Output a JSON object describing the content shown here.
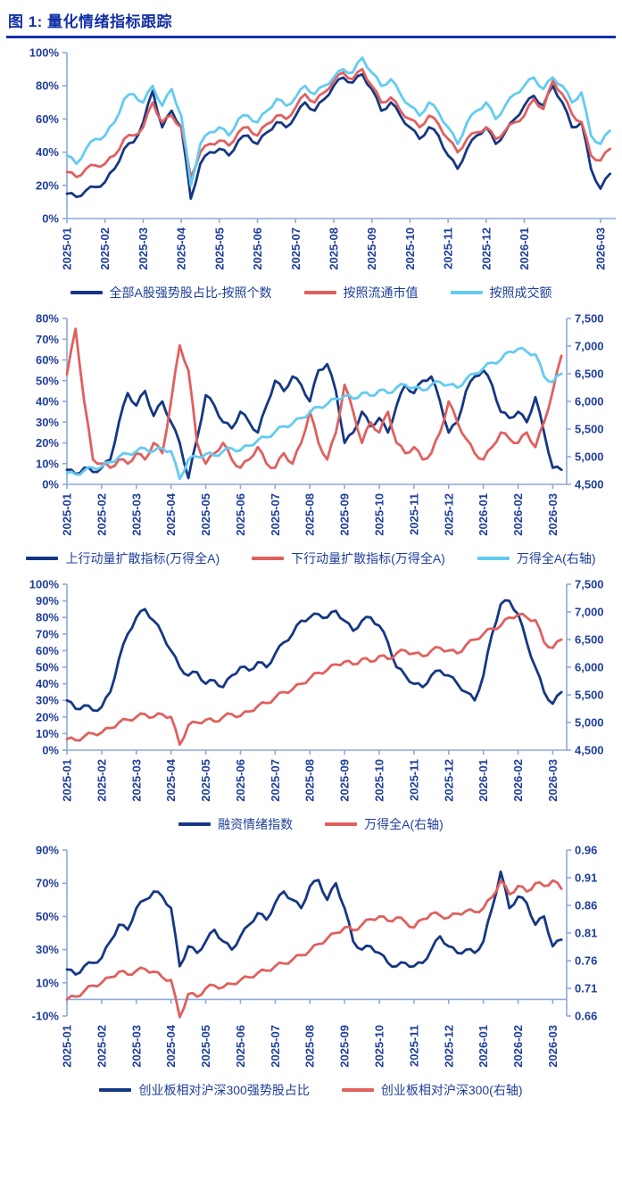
{
  "title": "图 1: 量化情绪指标跟踪",
  "colors": {
    "navy": "#153784",
    "red": "#E0605E",
    "cyan": "#63CBF1",
    "axis": "#8EA9DB",
    "label": "#1F3F9B",
    "title": "#1430A6"
  },
  "chart_data": [
    {
      "type": "line",
      "name": "all-a-share-strong-stock-ratio",
      "x_span": 14.4,
      "x_step": 0.25,
      "x_labels": [
        "2025-01",
        "2025-02",
        "2025-03",
        "2025-04",
        "2025-05",
        "2025-06",
        "2025-07",
        "2025-08",
        "2025-09",
        "2025-10",
        "2025-11",
        "2025-12",
        "2026-01",
        "2026-03"
      ],
      "x_positions": [
        0,
        1,
        2,
        3,
        4,
        5,
        6,
        7,
        8,
        9,
        10,
        11,
        12,
        14
      ],
      "baseline": 0,
      "left_axis": {
        "min": 0,
        "max": 100,
        "ticks": [
          0,
          20,
          40,
          60,
          80,
          100
        ],
        "labels": [
          "0%",
          "20%",
          "40%",
          "60%",
          "80%",
          "100%"
        ]
      },
      "right_axis": null,
      "series": [
        {
          "name": "全部A股强势股占比-按照个数",
          "color": "navy",
          "axis": "left",
          "values": [
            15,
            13,
            17,
            19,
            22,
            30,
            42,
            46,
            58,
            77,
            55,
            65,
            55,
            12,
            33,
            40,
            42,
            38,
            47,
            50,
            45,
            52,
            58,
            55,
            62,
            70,
            65,
            72,
            80,
            85,
            82,
            87,
            78,
            65,
            70,
            62,
            55,
            48,
            55,
            50,
            38,
            30,
            42,
            50,
            55,
            45,
            52,
            60,
            68,
            74,
            68,
            80,
            70,
            55,
            58,
            30,
            18,
            27
          ]
        },
        {
          "name": "按照流通市值",
          "color": "red",
          "axis": "left",
          "values": [
            28,
            25,
            30,
            32,
            33,
            38,
            48,
            50,
            55,
            70,
            58,
            62,
            55,
            25,
            40,
            45,
            47,
            44,
            52,
            55,
            50,
            57,
            62,
            60,
            67,
            75,
            70,
            76,
            83,
            88,
            84,
            90,
            80,
            70,
            73,
            65,
            60,
            55,
            62,
            57,
            48,
            40,
            48,
            52,
            55,
            48,
            53,
            58,
            62,
            72,
            66,
            83,
            75,
            63,
            58,
            38,
            35,
            42
          ]
        },
        {
          "name": "按照成交额",
          "color": "cyan",
          "axis": "left",
          "values": [
            38,
            33,
            42,
            48,
            50,
            58,
            72,
            75,
            70,
            80,
            68,
            78,
            62,
            20,
            45,
            52,
            55,
            50,
            60,
            62,
            58,
            65,
            72,
            68,
            73,
            80,
            75,
            80,
            85,
            90,
            88,
            97,
            88,
            80,
            84,
            75,
            68,
            62,
            70,
            64,
            55,
            45,
            58,
            65,
            70,
            60,
            68,
            75,
            80,
            85,
            78,
            85,
            80,
            70,
            76,
            50,
            45,
            53
          ]
        }
      ]
    },
    {
      "type": "line",
      "name": "momentum-diffusion-indicators",
      "x_span": 14.4,
      "x_step": 0.25,
      "x_labels": [
        "2025-01",
        "2025-02",
        "2025-03",
        "2025-04",
        "2025-05",
        "2025-06",
        "2025-07",
        "2025-08",
        "2025-09",
        "2025-10",
        "2025-11",
        "2025-12",
        "2026-01",
        "2026-02",
        "2026-03"
      ],
      "x_positions": [
        0,
        1,
        2,
        3,
        4,
        5,
        6,
        7,
        8,
        9,
        10,
        11,
        12,
        13,
        14
      ],
      "baseline": 0,
      "left_axis": {
        "min": 0,
        "max": 80,
        "ticks": [
          0,
          10,
          20,
          30,
          40,
          50,
          60,
          70,
          80
        ],
        "labels": [
          "0%",
          "10%",
          "20%",
          "30%",
          "40%",
          "50%",
          "60%",
          "70%",
          "80%"
        ]
      },
      "right_axis": {
        "min": 4500,
        "max": 7500,
        "ticks": [
          4500,
          5000,
          5500,
          6000,
          6500,
          7000,
          7500
        ],
        "labels": [
          "4,500",
          "5,000",
          "5,500",
          "6,000",
          "6,500",
          "7,000",
          "7,500"
        ]
      },
      "series": [
        {
          "name": "上行动量扩散指标(万得全A)",
          "color": "navy",
          "axis": "left",
          "values": [
            7,
            5,
            8,
            6,
            8,
            12,
            30,
            44,
            38,
            45,
            33,
            40,
            30,
            20,
            3,
            22,
            43,
            38,
            30,
            27,
            35,
            30,
            25,
            38,
            50,
            45,
            52,
            48,
            40,
            55,
            58,
            45,
            20,
            25,
            35,
            28,
            32,
            25,
            38,
            48,
            44,
            50,
            52,
            40,
            25,
            30,
            45,
            52,
            55,
            48,
            35,
            32,
            35,
            30,
            42,
            25,
            8,
            7
          ]
        },
        {
          "name": "下行动量扩散指标(万得全A)",
          "color": "red",
          "axis": "left",
          "values": [
            53,
            75,
            40,
            12,
            10,
            8,
            12,
            10,
            15,
            12,
            20,
            15,
            40,
            67,
            55,
            20,
            10,
            15,
            20,
            12,
            8,
            12,
            18,
            10,
            8,
            15,
            10,
            20,
            35,
            20,
            12,
            25,
            48,
            35,
            20,
            30,
            25,
            35,
            20,
            15,
            18,
            12,
            15,
            25,
            40,
            30,
            22,
            15,
            12,
            18,
            25,
            22,
            20,
            25,
            18,
            30,
            45,
            62
          ]
        },
        {
          "name": "万得全A(右轴)",
          "color": "cyan",
          "axis": "right",
          "values": [
            4700,
            4680,
            4750,
            4800,
            4820,
            4900,
            5000,
            5050,
            5100,
            5150,
            5100,
            5150,
            5100,
            4600,
            4950,
            5000,
            5050,
            5020,
            5100,
            5150,
            5120,
            5200,
            5300,
            5350,
            5450,
            5550,
            5600,
            5700,
            5800,
            5900,
            5950,
            6050,
            6100,
            6050,
            6150,
            6100,
            6200,
            6150,
            6250,
            6300,
            6250,
            6200,
            6300,
            6350,
            6300,
            6250,
            6400,
            6500,
            6600,
            6700,
            6750,
            6900,
            6950,
            6900,
            6850,
            6450,
            6350,
            6500
          ]
        }
      ]
    },
    {
      "type": "line",
      "name": "financing-sentiment-index",
      "x_span": 14.4,
      "x_step": 0.25,
      "x_labels": [
        "2025-01",
        "2025-02",
        "2025-03",
        "2025-04",
        "2025-05",
        "2025-06",
        "2025-07",
        "2025-08",
        "2025-09",
        "2025-10",
        "2025-11",
        "2025-12",
        "2026-01",
        "2026-02",
        "2026-03"
      ],
      "x_positions": [
        0,
        1,
        2,
        3,
        4,
        5,
        6,
        7,
        8,
        9,
        10,
        11,
        12,
        13,
        14
      ],
      "baseline": 0,
      "left_axis": {
        "min": 0,
        "max": 100,
        "ticks": [
          0,
          10,
          20,
          30,
          40,
          50,
          60,
          70,
          80,
          90,
          100
        ],
        "labels": [
          "0%",
          "10%",
          "20%",
          "30%",
          "40%",
          "50%",
          "60%",
          "70%",
          "80%",
          "90%",
          "100%"
        ]
      },
      "right_axis": {
        "min": 4500,
        "max": 7500,
        "ticks": [
          4500,
          5000,
          5500,
          6000,
          6500,
          7000,
          7500
        ],
        "labels": [
          "4,500",
          "5,000",
          "5,500",
          "6,000",
          "6,500",
          "7,000",
          "7,500"
        ]
      },
      "series": [
        {
          "name": "融资情绪指数",
          "color": "navy",
          "axis": "left",
          "values": [
            30,
            25,
            27,
            24,
            26,
            35,
            55,
            70,
            80,
            85,
            78,
            70,
            60,
            50,
            45,
            47,
            40,
            42,
            38,
            45,
            50,
            48,
            53,
            50,
            58,
            65,
            70,
            78,
            80,
            82,
            80,
            84,
            78,
            72,
            78,
            80,
            75,
            65,
            50,
            45,
            40,
            38,
            45,
            48,
            45,
            40,
            35,
            30,
            45,
            70,
            88,
            90,
            82,
            65,
            50,
            35,
            28,
            35
          ]
        },
        {
          "name": "万得全A(右轴)",
          "color": "red",
          "axis": "right",
          "values": [
            4700,
            4680,
            4750,
            4800,
            4820,
            4900,
            5000,
            5050,
            5100,
            5150,
            5100,
            5150,
            5100,
            4600,
            4950,
            5000,
            5050,
            5020,
            5100,
            5150,
            5120,
            5200,
            5300,
            5350,
            5450,
            5550,
            5600,
            5700,
            5800,
            5900,
            5950,
            6050,
            6100,
            6050,
            6150,
            6100,
            6200,
            6150,
            6250,
            6300,
            6250,
            6200,
            6300,
            6350,
            6300,
            6250,
            6400,
            6500,
            6600,
            6700,
            6750,
            6900,
            6950,
            6900,
            6850,
            6450,
            6350,
            6500
          ]
        }
      ]
    },
    {
      "type": "line",
      "name": "chinext-vs-hs300",
      "x_span": 14.4,
      "x_step": 0.25,
      "x_labels": [
        "2025-01",
        "2025-02",
        "2025-03",
        "2025-04",
        "2025-05",
        "2025-06",
        "2025-07",
        "2025-08",
        "2025-09",
        "2025-10",
        "2025-11",
        "2025-12",
        "2026-01",
        "2026-02",
        "2026-03"
      ],
      "x_positions": [
        0,
        1,
        2,
        3,
        4,
        5,
        6,
        7,
        8,
        9,
        10,
        11,
        12,
        13,
        14
      ],
      "baseline": 0,
      "left_axis": {
        "min": -10,
        "max": 90,
        "ticks": [
          -10,
          10,
          30,
          50,
          70,
          90
        ],
        "labels": [
          "-10%",
          "10%",
          "30%",
          "50%",
          "70%",
          "90%"
        ]
      },
      "right_axis": {
        "min": 0.66,
        "max": 0.96,
        "ticks": [
          0.66,
          0.71,
          0.76,
          0.81,
          0.86,
          0.91,
          0.96
        ],
        "labels": [
          "0.66",
          "0.71",
          "0.76",
          "0.81",
          "0.86",
          "0.91",
          "0.96"
        ]
      },
      "series": [
        {
          "name": "创业板相对沪深300强势股占比",
          "color": "navy",
          "axis": "left",
          "values": [
            18,
            15,
            20,
            22,
            25,
            35,
            45,
            42,
            55,
            60,
            65,
            62,
            55,
            20,
            32,
            28,
            35,
            42,
            35,
            30,
            38,
            45,
            52,
            48,
            58,
            65,
            60,
            55,
            68,
            72,
            60,
            70,
            55,
            35,
            30,
            32,
            28,
            22,
            20,
            22,
            20,
            22,
            30,
            38,
            32,
            28,
            30,
            28,
            35,
            55,
            77,
            55,
            62,
            58,
            45,
            50,
            32,
            36
          ]
        },
        {
          "name": "创业板相对沪深300(右轴)",
          "color": "red",
          "axis": "right",
          "values": [
            0.69,
            0.695,
            0.705,
            0.715,
            0.72,
            0.73,
            0.74,
            0.735,
            0.742,
            0.745,
            0.74,
            0.73,
            0.725,
            0.658,
            0.7,
            0.695,
            0.71,
            0.715,
            0.712,
            0.718,
            0.725,
            0.73,
            0.738,
            0.742,
            0.75,
            0.755,
            0.762,
            0.77,
            0.778,
            0.79,
            0.8,
            0.81,
            0.82,
            0.815,
            0.825,
            0.835,
            0.84,
            0.832,
            0.838,
            0.83,
            0.82,
            0.835,
            0.845,
            0.842,
            0.838,
            0.845,
            0.85,
            0.848,
            0.855,
            0.875,
            0.905,
            0.88,
            0.895,
            0.885,
            0.9,
            0.895,
            0.905,
            0.89
          ]
        }
      ]
    }
  ]
}
